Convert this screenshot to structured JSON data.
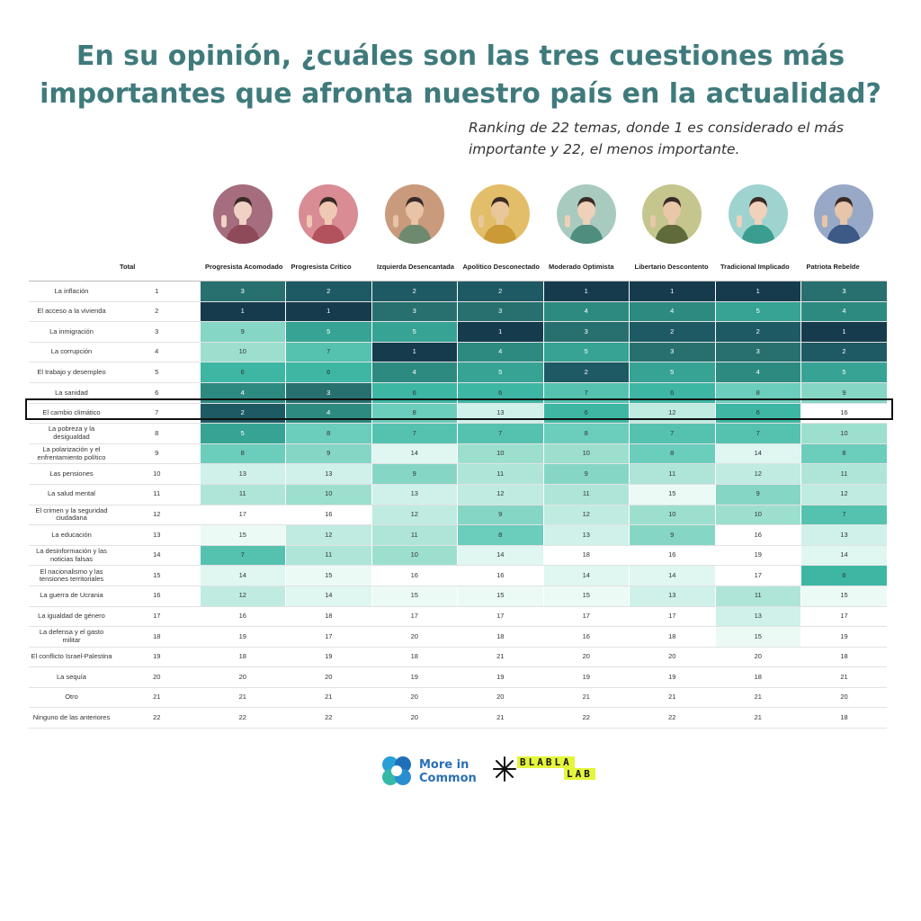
{
  "title_line1": "En su opinión, ¿cuáles son las tres cuestiones más",
  "title_line2": "importantes que afronta nuestro país en la actualidad?",
  "subtitle_line1": "Ranking de 22 temas, donde 1 es considerado el más",
  "subtitle_line2": "importante y 22, el menos importante.",
  "colors": {
    "rank_1": "#163b4d",
    "rank_2": "#1e5a63",
    "rank_3": "#27706f",
    "rank_4": "#2d8a80",
    "rank_5": "#36a394",
    "rank_6": "#3db7a4",
    "rank_7": "#55c2b0",
    "rank_8": "#6bcdbb",
    "rank_9": "#86d6c5",
    "rank_10": "#9cdfcf",
    "rank_11": "#aee5d8",
    "rank_12": "#bfebe0",
    "rank_13": "#cff1e9",
    "rank_14": "#dff6f1",
    "rank_15": "#ecfaf6",
    "rank_16_plus": "#ffffff",
    "title": "#3f7a7c",
    "highlight_border": "#111111"
  },
  "avatars": [
    {
      "name": "avatar-progresista-acomodado",
      "bg": "#a56d7e",
      "skin": "#f0d2c4",
      "shirt": "#8f4a5a"
    },
    {
      "name": "avatar-progresista-critico",
      "bg": "#d98c94",
      "skin": "#f0c9b5",
      "shirt": "#b2525d"
    },
    {
      "name": "avatar-izquierda-desencantada",
      "bg": "#c99a7c",
      "skin": "#e9c3a6",
      "shirt": "#6e8a6e"
    },
    {
      "name": "avatar-apolitico-desconectado",
      "bg": "#e3be6a",
      "skin": "#eac79b",
      "shirt": "#c99a36"
    },
    {
      "name": "avatar-moderado-optimista",
      "bg": "#a9cbbf",
      "skin": "#efd0b8",
      "shirt": "#4f8e7e"
    },
    {
      "name": "avatar-libertario-descontento",
      "bg": "#c5c68d",
      "skin": "#e8c8a8",
      "shirt": "#5f6b3a"
    },
    {
      "name": "avatar-tradicional-implicado",
      "bg": "#9fd3cf",
      "skin": "#efd1bc",
      "shirt": "#3a9d8f"
    },
    {
      "name": "avatar-patriota-rebelde",
      "bg": "#98a9c7",
      "skin": "#e6c5a8",
      "shirt": "#3d5a86"
    }
  ],
  "chart_data": {
    "type": "table",
    "title": "En su opinión, ¿cuáles son las tres cuestiones más importantes que afronta nuestro país en la actualidad?",
    "subtitle": "Ranking de 22 temas, donde 1 es considerado el más importante y 22, el menos importante.",
    "columns": [
      "",
      "Total",
      "Progresista Acomodado",
      "Progresista Crítico",
      "Izquierda Desencantada",
      "Apolítico Desconectado",
      "Moderado Optimista",
      "Libertario Descontento",
      "Tradicional Implicado",
      "Patriota Rebelde"
    ],
    "highlighted_row": "El cambio climático",
    "rows": [
      {
        "label": "La inflación",
        "total": "1",
        "ranks": [
          3,
          2,
          2,
          2,
          1,
          1,
          1,
          3
        ]
      },
      {
        "label": "El acceso a la vivienda",
        "total": "2",
        "ranks": [
          1,
          1,
          3,
          3,
          4,
          4,
          5,
          4
        ]
      },
      {
        "label": "La inmigración",
        "total": "3",
        "ranks": [
          9,
          5,
          5,
          1,
          3,
          2,
          2,
          1
        ]
      },
      {
        "label": "La corrupción",
        "total": "4",
        "ranks": [
          10,
          7,
          1,
          4,
          5,
          3,
          3,
          2
        ]
      },
      {
        "label": "El trabajo y desempleo",
        "total": "5",
        "ranks": [
          6,
          6,
          4,
          5,
          2,
          5,
          4,
          5
        ]
      },
      {
        "label": "La sanidad",
        "total": "6",
        "ranks": [
          4,
          3,
          6,
          6,
          7,
          6,
          8,
          9
        ]
      },
      {
        "label": "El cambio climático",
        "total": "7",
        "ranks": [
          2,
          4,
          8,
          13,
          6,
          12,
          6,
          16
        ]
      },
      {
        "label": "La pobreza y la desigualdad",
        "total": "8",
        "ranks": [
          5,
          8,
          7,
          7,
          8,
          7,
          7,
          10
        ]
      },
      {
        "label": "La polarización y el enfrentamiento político",
        "total": "9",
        "ranks": [
          8,
          9,
          14,
          10,
          10,
          8,
          14,
          8
        ]
      },
      {
        "label": "Las pensiones",
        "total": "10",
        "ranks": [
          13,
          13,
          9,
          11,
          9,
          11,
          12,
          11
        ]
      },
      {
        "label": "La salud mental",
        "total": "11",
        "ranks": [
          11,
          10,
          13,
          12,
          11,
          15,
          9,
          12
        ]
      },
      {
        "label": "El crimen y la seguridad ciudadana",
        "total": "12",
        "ranks": [
          17,
          16,
          12,
          9,
          12,
          10,
          10,
          7
        ]
      },
      {
        "label": "La educación",
        "total": "13",
        "ranks": [
          15,
          12,
          11,
          8,
          13,
          9,
          16,
          13
        ]
      },
      {
        "label": "La desinformación y las noticias falsas",
        "total": "14",
        "ranks": [
          7,
          11,
          10,
          14,
          18,
          16,
          19,
          14
        ]
      },
      {
        "label": "El nacionalismo y las tensiones territoriales",
        "total": "15",
        "ranks": [
          14,
          15,
          16,
          16,
          14,
          14,
          17,
          6
        ]
      },
      {
        "label": "La guerra de Ucrania",
        "total": "16",
        "ranks": [
          12,
          14,
          15,
          15,
          15,
          13,
          11,
          15
        ]
      },
      {
        "label": "La igualdad de género",
        "total": "17",
        "ranks": [
          16,
          18,
          17,
          17,
          17,
          17,
          13,
          17
        ]
      },
      {
        "label": "La defensa y el gasto militar",
        "total": "18",
        "ranks": [
          19,
          17,
          20,
          18,
          16,
          18,
          15,
          19
        ]
      },
      {
        "label": "El conflicto Israel-Palestina",
        "total": "19",
        "ranks": [
          18,
          19,
          18,
          21,
          20,
          20,
          20,
          18
        ]
      },
      {
        "label": "La sequía",
        "total": "20",
        "ranks": [
          20,
          20,
          19,
          19,
          19,
          19,
          18,
          21
        ]
      },
      {
        "label": "Otro",
        "total": "21",
        "ranks": [
          21,
          21,
          20,
          20,
          21,
          21,
          21,
          20
        ]
      },
      {
        "label": "Ninguno de las anteriores",
        "total": "22",
        "ranks": [
          22,
          22,
          20,
          21,
          22,
          22,
          21,
          18
        ]
      }
    ]
  },
  "logos": {
    "more_in_common_line1": "More in",
    "more_in_common_line2": "Common",
    "blabla_line1": "BLABLA",
    "blabla_line2": "LAB",
    "more_in_common_color": "#2a6fb5",
    "blabla_highlight": "#e4f53a"
  }
}
